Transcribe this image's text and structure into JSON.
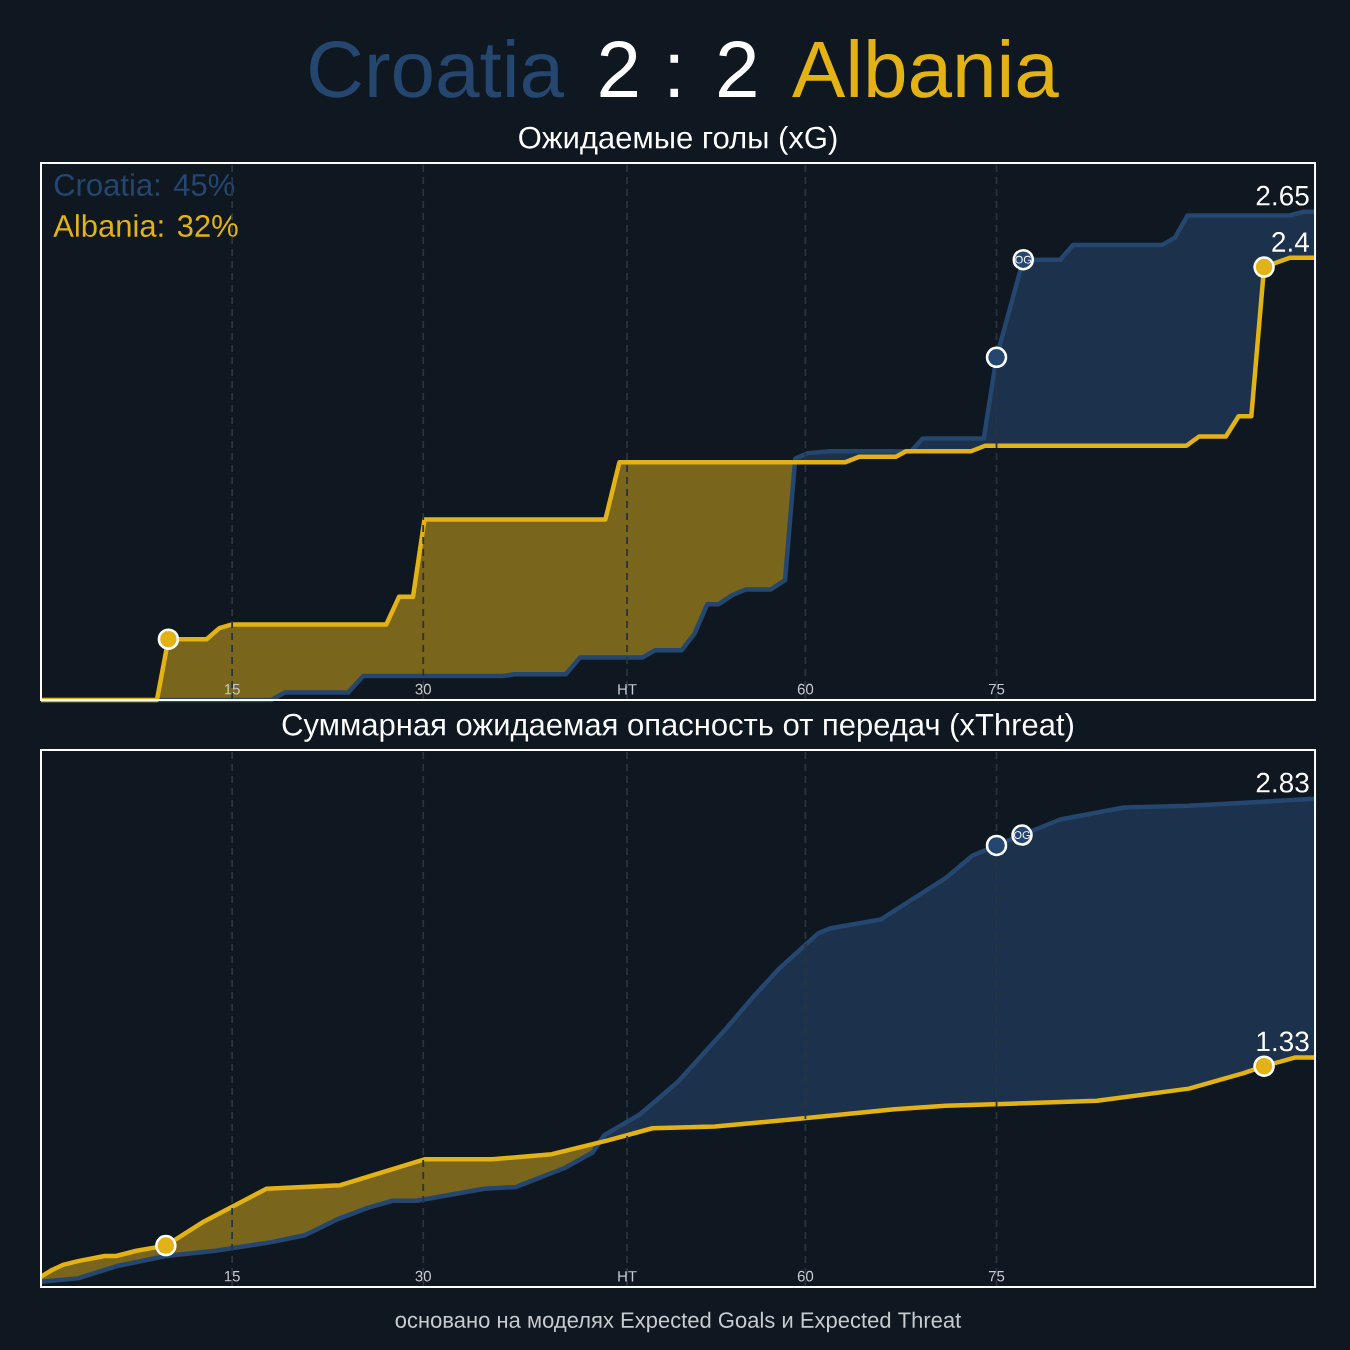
{
  "chart_data": [
    {
      "type": "other",
      "title": "2 : 2",
      "categories": [
        "Croatia",
        "Albania"
      ],
      "colors": [
        "#25466f",
        "#e3b214"
      ]
    },
    {
      "type": "line",
      "title": "Ожидаемые голы (xG)",
      "xlim": [
        0,
        100
      ],
      "ylim": [
        0,
        2.915
      ],
      "xticks": [
        15,
        30,
        {
          "value": 46,
          "label": "HT"
        },
        60,
        75
      ],
      "grid": "x",
      "legend": "top left",
      "series": [
        {
          "name": "Croatia: 45%",
          "color": "#25466f",
          "x": [
            0,
            18.1,
            19.1,
            24.1,
            25.3,
            36.2,
            37.2,
            41.2,
            42.3,
            47.2,
            48.2,
            50.3,
            51.3,
            52.3,
            53.2,
            54.3,
            55.3,
            57.3,
            58.4,
            59.2,
            60.2,
            61.9,
            68.3,
            69.2,
            74,
            75,
            77.1,
            80,
            81,
            88,
            89,
            90,
            98,
            99.1,
            100
          ],
          "values": [
            0,
            0,
            0.04,
            0.04,
            0.13,
            0.13,
            0.14,
            0.14,
            0.23,
            0.23,
            0.27,
            0.27,
            0.36,
            0.52,
            0.52,
            0.57,
            0.6,
            0.6,
            0.65,
            1.31,
            1.34,
            1.35,
            1.35,
            1.42,
            1.42,
            1.86,
            2.39,
            2.39,
            2.47,
            2.47,
            2.51,
            2.63,
            2.63,
            2.65,
            2.65
          ],
          "value_labels": [
            null,
            null,
            null,
            null,
            null,
            null,
            null,
            null,
            null,
            null,
            null,
            null,
            null,
            null,
            null,
            null,
            null,
            null,
            null,
            null,
            null,
            null,
            null,
            null,
            null,
            null,
            null,
            null,
            null,
            null,
            null,
            null,
            null,
            null,
            "2.65"
          ]
        },
        {
          "name": "Albania: 32%",
          "color": "#e3b214",
          "x": [
            0,
            9.1,
            10,
            13,
            14,
            15,
            27.1,
            28.1,
            29.2,
            30.1,
            44.3,
            45.4,
            63.1,
            64.2,
            67.1,
            67.9,
            73,
            74.1,
            89.9,
            90.9,
            93,
            94,
            95,
            96,
            98,
            100
          ],
          "values": [
            0,
            0,
            0.33,
            0.33,
            0.39,
            0.41,
            0.41,
            0.56,
            0.56,
            0.98,
            0.98,
            1.29,
            1.29,
            1.32,
            1.32,
            1.35,
            1.35,
            1.38,
            1.38,
            1.43,
            1.43,
            1.54,
            1.54,
            2.35,
            2.4,
            2.4
          ],
          "value_labels": [
            null,
            null,
            null,
            null,
            null,
            null,
            null,
            null,
            null,
            null,
            null,
            null,
            null,
            null,
            null,
            null,
            null,
            null,
            null,
            null,
            null,
            null,
            null,
            null,
            null,
            "2.4"
          ]
        },
        {
          "type": "scatter",
          "color": "#25466f",
          "marker": "circle",
          "x": [
            75,
            77.1
          ],
          "values": [
            1.86,
            2.39
          ]
        },
        {
          "type": "scatter",
          "color": "#e3b214",
          "marker": "circle",
          "x": [
            10,
            96
          ],
          "values": [
            0.33,
            2.35
          ]
        }
      ],
      "annotations": [
        {
          "text": "OG",
          "x": 77.1,
          "y": 2.39
        }
      ]
    },
    {
      "type": "line",
      "title": "Суммарная ожидаемая опасность от передач (xThreat)",
      "xlim": [
        0,
        100
      ],
      "ylim": [
        0,
        3.113
      ],
      "xticks": [
        15,
        30,
        {
          "value": 46,
          "label": "HT"
        },
        60,
        75
      ],
      "grid": "x",
      "series": [
        {
          "color": "#25466f",
          "x": [
            0,
            2.9,
            5.9,
            9.8,
            13.7,
            18.1,
            20.7,
            23.2,
            25.7,
            27.6,
            29.5,
            34.8,
            37.3,
            41.1,
            43.3,
            44.2,
            47,
            50,
            53.8,
            56,
            58,
            61,
            62,
            65.9,
            71,
            73.1,
            75,
            77,
            80,
            85,
            90.1,
            95.2,
            100
          ],
          "values": [
            0.03,
            0.05,
            0.12,
            0.18,
            0.21,
            0.26,
            0.3,
            0.39,
            0.46,
            0.5,
            0.5,
            0.57,
            0.58,
            0.69,
            0.78,
            0.88,
            1,
            1.19,
            1.5,
            1.69,
            1.85,
            2.05,
            2.08,
            2.13,
            2.37,
            2.5,
            2.56,
            2.62,
            2.71,
            2.78,
            2.79,
            2.81,
            2.83
          ],
          "value_labels": [
            null,
            null,
            null,
            null,
            null,
            null,
            null,
            null,
            null,
            null,
            null,
            null,
            null,
            null,
            null,
            null,
            null,
            null,
            null,
            null,
            null,
            null,
            null,
            null,
            null,
            null,
            null,
            null,
            null,
            null,
            null,
            null,
            "2.83"
          ]
        },
        {
          "color": "#e3b214",
          "x": [
            0,
            0.9,
            1.8,
            2.9,
            5,
            5.9,
            7.5,
            9.8,
            12.8,
            17.7,
            23.5,
            30.1,
            35.4,
            40.1,
            44.5,
            48,
            52.9,
            60.1,
            67,
            71,
            82.9,
            90.1,
            94.4,
            96,
            98.4,
            100
          ],
          "values": [
            0.06,
            0.1,
            0.13,
            0.15,
            0.18,
            0.18,
            0.21,
            0.24,
            0.38,
            0.57,
            0.59,
            0.74,
            0.74,
            0.77,
            0.85,
            0.92,
            0.93,
            0.98,
            1.03,
            1.05,
            1.08,
            1.15,
            1.24,
            1.28,
            1.33,
            1.33
          ],
          "value_labels": [
            null,
            null,
            null,
            null,
            null,
            null,
            null,
            null,
            null,
            null,
            null,
            null,
            null,
            null,
            null,
            null,
            null,
            null,
            null,
            null,
            null,
            null,
            null,
            null,
            null,
            "1.33"
          ]
        },
        {
          "type": "scatter",
          "color": "#25466f",
          "marker": "circle",
          "x": [
            75,
            77
          ],
          "values": [
            2.56,
            2.62
          ]
        },
        {
          "type": "scatter",
          "color": "#e3b214",
          "marker": "circle",
          "x": [
            9.8,
            96
          ],
          "values": [
            0.24,
            1.28
          ]
        }
      ],
      "annotations": [
        {
          "text": "OG",
          "x": 77,
          "y": 2.62
        },
        "основано на моделях Expected Goals и Expected Threat"
      ]
    }
  ]
}
